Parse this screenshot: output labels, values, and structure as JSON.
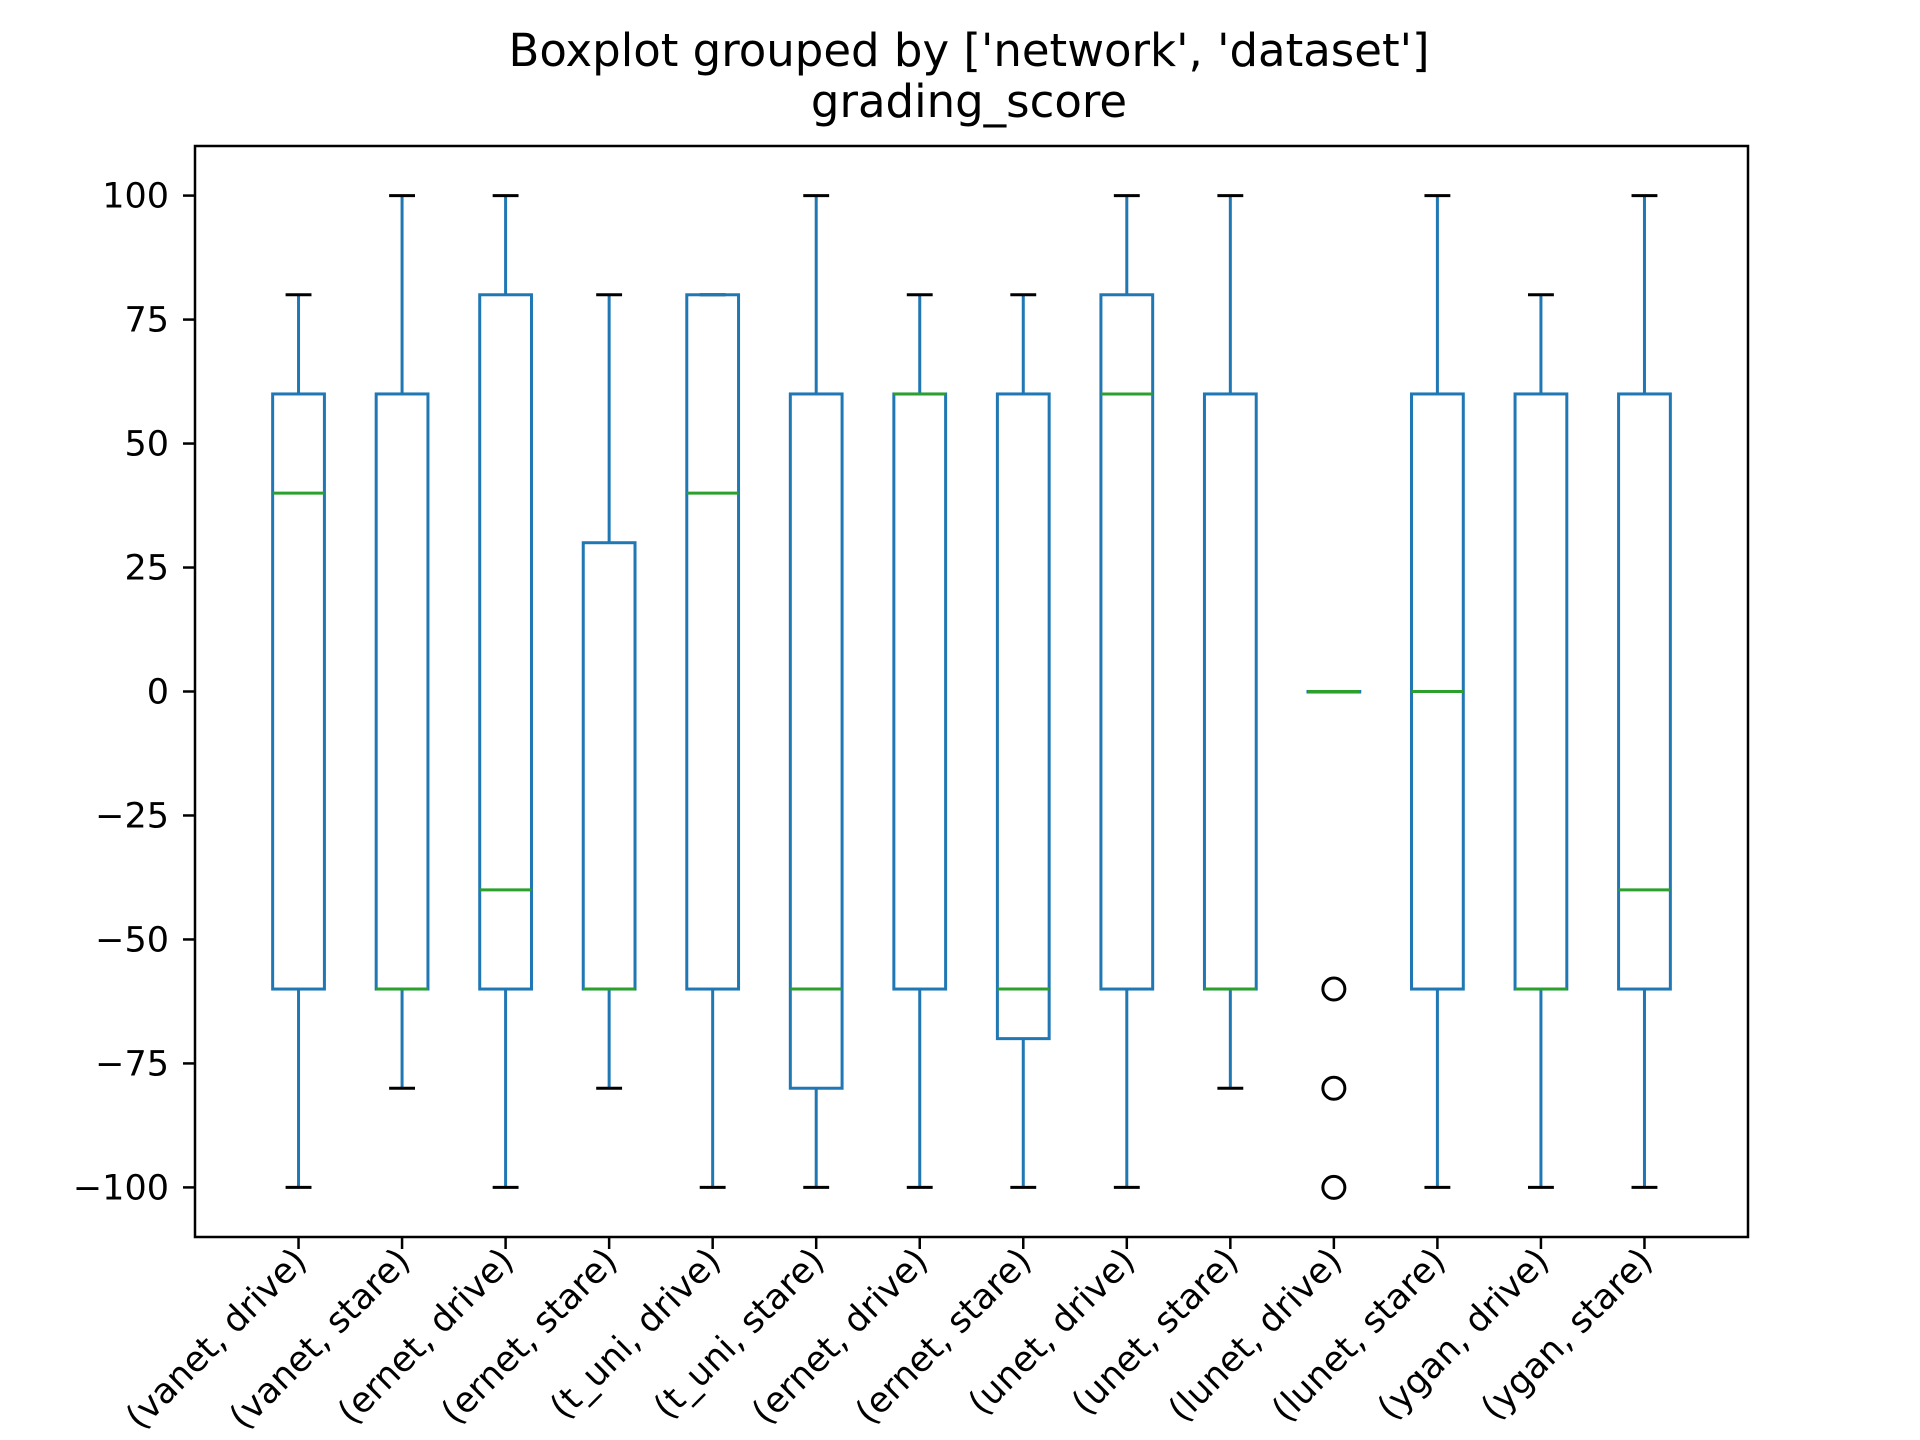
{
  "chart_data": {
    "type": "box",
    "title": "Boxplot grouped by ['network', 'dataset']",
    "subtitle": "grading_score",
    "xlabel": "",
    "ylabel": "",
    "ylim": [
      -110,
      110
    ],
    "yticks": [
      100,
      75,
      50,
      25,
      0,
      -25,
      -50,
      -75,
      -100
    ],
    "ytick_labels": [
      "100",
      "75",
      "50",
      "25",
      "0",
      "−25",
      "−50",
      "−75",
      "−100"
    ],
    "categories": [
      "(vanet, drive)",
      "(vanet, stare)",
      "(ernet, drive)",
      "(ernet, stare)",
      "(t_uni, drive)",
      "(t_uni, stare)",
      "(ernet, drive)",
      "(ernet, stare)",
      "(unet, drive)",
      "(unet, stare)",
      "(lunet, drive)",
      "(lunet, stare)",
      "(ygan, drive)",
      "(ygan, stare)"
    ],
    "boxes": [
      {
        "whisker_low": -100,
        "q1": -60,
        "median": 40,
        "q3": 60,
        "whisker_high": 80,
        "outliers": []
      },
      {
        "whisker_low": -80,
        "q1": -60,
        "median": -60,
        "q3": 60,
        "whisker_high": 100,
        "outliers": []
      },
      {
        "whisker_low": -100,
        "q1": -60,
        "median": -40,
        "q3": 80,
        "whisker_high": 100,
        "outliers": []
      },
      {
        "whisker_low": -80,
        "q1": -60,
        "median": -60,
        "q3": 30,
        "whisker_high": 80,
        "outliers": []
      },
      {
        "whisker_low": -100,
        "q1": -60,
        "median": 40,
        "q3": 80,
        "whisker_high": 80,
        "outliers": []
      },
      {
        "whisker_low": -100,
        "q1": -80,
        "median": -60,
        "q3": 60,
        "whisker_high": 100,
        "outliers": []
      },
      {
        "whisker_low": -100,
        "q1": -60,
        "median": 60,
        "q3": 60,
        "whisker_high": 80,
        "outliers": []
      },
      {
        "whisker_low": -100,
        "q1": -70,
        "median": -60,
        "q3": 60,
        "whisker_high": 80,
        "outliers": []
      },
      {
        "whisker_low": -100,
        "q1": -60,
        "median": 60,
        "q3": 80,
        "whisker_high": 100,
        "outliers": []
      },
      {
        "whisker_low": -80,
        "q1": -60,
        "median": -60,
        "q3": 60,
        "whisker_high": 100,
        "outliers": []
      },
      {
        "whisker_low": 0,
        "q1": 0,
        "median": 0,
        "q3": 0,
        "whisker_high": 0,
        "outliers": [
          -60,
          -80,
          -100
        ]
      },
      {
        "whisker_low": -100,
        "q1": -60,
        "median": 0,
        "q3": 60,
        "whisker_high": 100,
        "outliers": []
      },
      {
        "whisker_low": -100,
        "q1": -60,
        "median": -60,
        "q3": 60,
        "whisker_high": 80,
        "outliers": []
      },
      {
        "whisker_low": -100,
        "q1": -60,
        "median": -40,
        "q3": 60,
        "whisker_high": 100,
        "outliers": []
      }
    ],
    "grid": false,
    "legend": "none",
    "colors": {
      "box": "#1f77b4",
      "median": "#2ca02c",
      "cap": "#000000",
      "outlier": "#000000",
      "axes": "#000000"
    }
  }
}
